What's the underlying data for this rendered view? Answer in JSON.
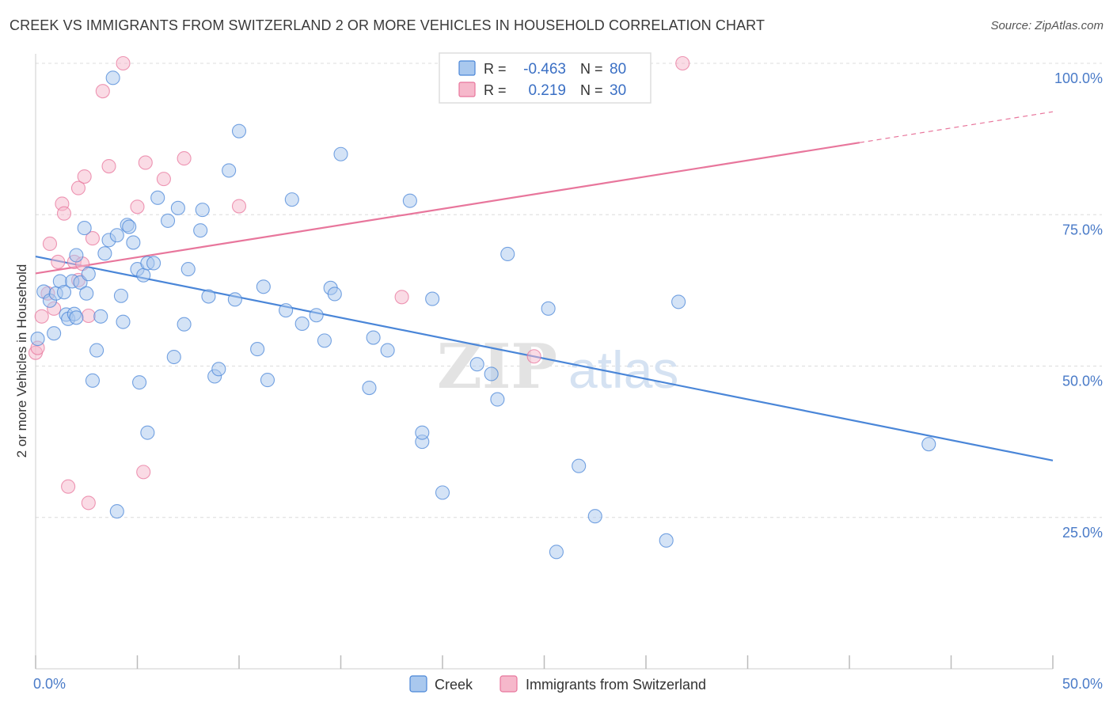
{
  "title": "CREEK VS IMMIGRANTS FROM SWITZERLAND 2 OR MORE VEHICLES IN HOUSEHOLD CORRELATION CHART",
  "source": "Source: ZipAtlas.com",
  "watermark": {
    "zip": "ZIP",
    "atlas": "atlas"
  },
  "legend_top": [
    {
      "r_label": "R =",
      "r_value": "-0.463",
      "n_label": "N =",
      "n_value": "80",
      "color": "#a9c8ee"
    },
    {
      "r_label": "R =",
      "r_value": "0.219",
      "n_label": "N =",
      "n_value": "30",
      "color": "#f6b8cb"
    }
  ],
  "legend_bottom": [
    {
      "label": "Creek",
      "color": "#a9c8ee"
    },
    {
      "label": "Immigrants from Switzerland",
      "color": "#f6b8cb"
    }
  ],
  "chart_data": {
    "type": "scatter",
    "ylabel": "2 or more Vehicles in Household",
    "x_tick_labels": [
      "0.0%",
      "50.0%"
    ],
    "y_tick_labels": [
      "100.0%",
      "75.0%",
      "50.0%",
      "25.0%"
    ],
    "y_ticks": [
      100,
      75,
      50,
      25
    ],
    "xlim": [
      0,
      50
    ],
    "ylim": [
      0,
      105
    ],
    "grid": true,
    "colors": {
      "creek": "#4a86d8",
      "swiss": "#e8769c",
      "creek_fill": "#a9c8ee",
      "swiss_fill": "#f6b8cb"
    },
    "series": [
      {
        "name": "Creek",
        "points": [
          [
            0.1,
            54.5
          ],
          [
            0.4,
            62.3
          ],
          [
            0.7,
            60.8
          ],
          [
            0.9,
            55.4
          ],
          [
            1.0,
            62.0
          ],
          [
            1.2,
            64.0
          ],
          [
            1.4,
            62.2
          ],
          [
            1.5,
            58.5
          ],
          [
            1.6,
            57.8
          ],
          [
            1.8,
            64.0
          ],
          [
            1.9,
            58.6
          ],
          [
            2.0,
            68.3
          ],
          [
            2.2,
            63.8
          ],
          [
            2.4,
            72.8
          ],
          [
            2.5,
            62.0
          ],
          [
            2.6,
            65.2
          ],
          [
            2.8,
            47.6
          ],
          [
            3.0,
            52.6
          ],
          [
            3.2,
            58.2
          ],
          [
            3.4,
            68.6
          ],
          [
            3.6,
            70.8
          ],
          [
            3.8,
            97.6
          ],
          [
            4.0,
            71.6
          ],
          [
            4.2,
            61.6
          ],
          [
            4.3,
            57.3
          ],
          [
            4.5,
            73.3
          ],
          [
            4.6,
            73.0
          ],
          [
            4.8,
            70.4
          ],
          [
            5.0,
            66.0
          ],
          [
            5.1,
            47.3
          ],
          [
            5.3,
            65.0
          ],
          [
            5.5,
            67.0
          ],
          [
            5.8,
            67.0
          ],
          [
            6.0,
            77.8
          ],
          [
            6.5,
            74.0
          ],
          [
            6.8,
            51.5
          ],
          [
            7.0,
            76.1
          ],
          [
            7.3,
            56.9
          ],
          [
            7.5,
            66.0
          ],
          [
            8.1,
            72.4
          ],
          [
            8.2,
            75.8
          ],
          [
            8.5,
            61.5
          ],
          [
            8.8,
            48.3
          ],
          [
            9.0,
            49.5
          ],
          [
            9.8,
            61.0
          ],
          [
            10.9,
            52.8
          ],
          [
            11.2,
            63.1
          ],
          [
            11.4,
            47.7
          ],
          [
            12.3,
            59.2
          ],
          [
            12.6,
            77.5
          ],
          [
            13.1,
            57.0
          ],
          [
            13.8,
            58.4
          ],
          [
            14.2,
            54.2
          ],
          [
            14.5,
            62.9
          ],
          [
            14.7,
            61.9
          ],
          [
            16.4,
            46.4
          ],
          [
            16.6,
            54.7
          ],
          [
            17.3,
            52.6
          ],
          [
            18.4,
            77.3
          ],
          [
            19.0,
            37.5
          ],
          [
            19.5,
            61.1
          ],
          [
            20.0,
            29.1
          ],
          [
            21.7,
            50.3
          ],
          [
            22.4,
            48.7
          ],
          [
            22.7,
            44.5
          ],
          [
            23.2,
            68.5
          ],
          [
            25.2,
            59.5
          ],
          [
            25.6,
            19.3
          ],
          [
            26.7,
            33.5
          ],
          [
            27.5,
            25.2
          ],
          [
            31.0,
            21.2
          ],
          [
            31.6,
            60.6
          ],
          [
            43.9,
            37.1
          ],
          [
            19.0,
            39.0
          ],
          [
            5.5,
            39.0
          ],
          [
            4.0,
            26.0
          ],
          [
            2.0,
            58.0
          ],
          [
            15.0,
            85.0
          ],
          [
            10.0,
            88.8
          ],
          [
            9.5,
            82.3
          ]
        ],
        "trend": {
          "x": [
            0,
            50
          ],
          "y": [
            68.1,
            34.4
          ]
        }
      },
      {
        "name": "Immigrants from Switzerland",
        "points": [
          [
            0.0,
            52.2
          ],
          [
            0.1,
            53.0
          ],
          [
            0.3,
            58.2
          ],
          [
            0.6,
            62.0
          ],
          [
            0.7,
            70.2
          ],
          [
            0.9,
            59.5
          ],
          [
            1.1,
            67.2
          ],
          [
            1.3,
            76.8
          ],
          [
            1.4,
            75.2
          ],
          [
            1.6,
            30.1
          ],
          [
            1.9,
            67.2
          ],
          [
            2.1,
            64.2
          ],
          [
            2.1,
            79.4
          ],
          [
            2.3,
            66.9
          ],
          [
            2.4,
            81.3
          ],
          [
            2.6,
            27.4
          ],
          [
            2.6,
            58.3
          ],
          [
            2.8,
            71.1
          ],
          [
            3.3,
            95.4
          ],
          [
            3.6,
            83.0
          ],
          [
            4.3,
            100.0
          ],
          [
            5.0,
            76.3
          ],
          [
            5.3,
            32.5
          ],
          [
            5.4,
            83.6
          ],
          [
            6.3,
            80.9
          ],
          [
            7.3,
            84.3
          ],
          [
            10.0,
            76.4
          ],
          [
            18.0,
            61.4
          ],
          [
            24.5,
            51.6
          ],
          [
            31.8,
            100.0
          ]
        ],
        "trend": {
          "x": [
            0,
            40.5
          ],
          "y": [
            65.3,
            86.9
          ]
        },
        "trend_dashed": {
          "x": [
            40.5,
            50
          ],
          "y": [
            86.9,
            92.0
          ]
        }
      }
    ]
  }
}
